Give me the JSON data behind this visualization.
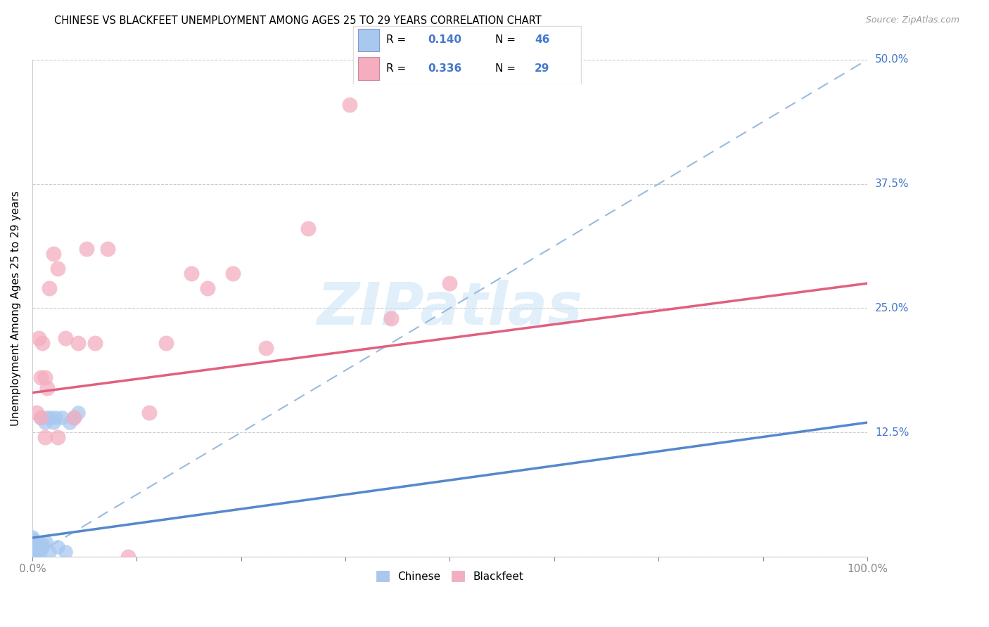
{
  "title": "CHINESE VS BLACKFEET UNEMPLOYMENT AMONG AGES 25 TO 29 YEARS CORRELATION CHART",
  "source": "Source: ZipAtlas.com",
  "ylabel": "Unemployment Among Ages 25 to 29 years",
  "xlim": [
    0,
    1.0
  ],
  "ylim": [
    0,
    0.5
  ],
  "xtick_positions": [
    0.0,
    0.125,
    0.25,
    0.375,
    0.5,
    0.625,
    0.75,
    0.875,
    1.0
  ],
  "xticklabels": [
    "0.0%",
    "",
    "",
    "",
    "",
    "",
    "",
    "",
    "100.0%"
  ],
  "ytick_positions": [
    0.0,
    0.125,
    0.25,
    0.375,
    0.5
  ],
  "yticklabels": [
    "",
    "12.5%",
    "25.0%",
    "37.5%",
    "50.0%"
  ],
  "chinese_R": 0.14,
  "chinese_N": 46,
  "blackfeet_R": 0.336,
  "blackfeet_N": 29,
  "chinese_color": "#a8c8f0",
  "blackfeet_color": "#f4aec0",
  "chinese_line_color": "#5588cc",
  "blackfeet_line_color": "#e06080",
  "diagonal_color": "#99bbdd",
  "watermark": "ZIPatlas",
  "chinese_line_x0": 0.0,
  "chinese_line_y0": 0.019,
  "chinese_line_x1": 1.0,
  "chinese_line_y1": 0.135,
  "blackfeet_line_x0": 0.0,
  "blackfeet_line_y0": 0.165,
  "blackfeet_line_x1": 1.0,
  "blackfeet_line_y1": 0.275,
  "chinese_x": [
    0.0,
    0.0,
    0.0,
    0.0,
    0.0,
    0.0,
    0.0,
    0.0,
    0.0,
    0.0,
    0.0,
    0.0,
    0.0,
    0.0,
    0.0,
    0.0,
    0.0,
    0.0,
    0.0,
    0.002,
    0.003,
    0.004,
    0.005,
    0.005,
    0.006,
    0.007,
    0.008,
    0.009,
    0.01,
    0.01,
    0.011,
    0.012,
    0.013,
    0.015,
    0.016,
    0.018,
    0.02,
    0.022,
    0.025,
    0.028,
    0.03,
    0.035,
    0.04,
    0.045,
    0.05,
    0.055
  ],
  "chinese_y": [
    0.0,
    0.0,
    0.0,
    0.002,
    0.003,
    0.004,
    0.005,
    0.005,
    0.006,
    0.007,
    0.008,
    0.009,
    0.01,
    0.01,
    0.012,
    0.013,
    0.015,
    0.018,
    0.02,
    0.003,
    0.008,
    0.005,
    0.007,
    0.01,
    0.006,
    0.01,
    0.008,
    0.005,
    0.008,
    0.14,
    0.01,
    0.01,
    0.012,
    0.135,
    0.015,
    0.14,
    0.005,
    0.14,
    0.135,
    0.14,
    0.01,
    0.14,
    0.005,
    0.135,
    0.14,
    0.145
  ],
  "blackfeet_x": [
    0.005,
    0.008,
    0.01,
    0.01,
    0.012,
    0.015,
    0.015,
    0.018,
    0.02,
    0.025,
    0.03,
    0.03,
    0.04,
    0.05,
    0.055,
    0.065,
    0.075,
    0.09,
    0.115,
    0.14,
    0.16,
    0.19,
    0.21,
    0.24,
    0.28,
    0.33,
    0.38,
    0.43,
    0.5
  ],
  "blackfeet_y": [
    0.145,
    0.22,
    0.14,
    0.18,
    0.215,
    0.12,
    0.18,
    0.17,
    0.27,
    0.305,
    0.12,
    0.29,
    0.22,
    0.14,
    0.215,
    0.31,
    0.215,
    0.31,
    0.0,
    0.145,
    0.215,
    0.285,
    0.27,
    0.285,
    0.21,
    0.33,
    0.455,
    0.24,
    0.275
  ]
}
